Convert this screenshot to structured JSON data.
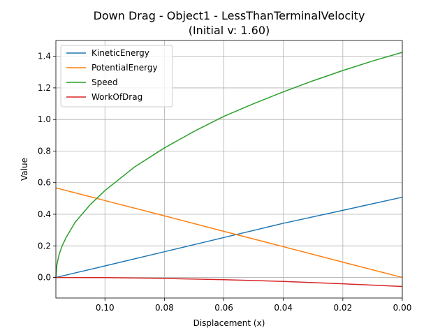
{
  "chart_data": {
    "type": "line",
    "title": "Down Drag - Object1 - LessThanTerminalVelocity",
    "subtitle": "(Initial v: 1.60)",
    "xlabel": "Displacement (x)",
    "ylabel": "Value",
    "xlim": [
      0.1165,
      0.0
    ],
    "ylim": [
      -0.13,
      1.5
    ],
    "x_inverted": true,
    "grid": true,
    "legend_position": "upper left",
    "xticks": [
      0.1,
      0.08,
      0.06,
      0.04,
      0.02,
      0.0
    ],
    "xtick_labels": [
      "0.10",
      "0.08",
      "0.06",
      "0.04",
      "0.02",
      "0.00"
    ],
    "yticks": [
      0.0,
      0.2,
      0.4,
      0.6,
      0.8,
      1.0,
      1.2,
      1.4
    ],
    "ytick_labels": [
      "0.0",
      "0.2",
      "0.4",
      "0.6",
      "0.8",
      "1.0",
      "1.2",
      "1.4"
    ],
    "series": [
      {
        "name": "KineticEnergy",
        "color": "#1f77b4",
        "x": [
          0.1165,
          0.1,
          0.08,
          0.06,
          0.04,
          0.02,
          0.0
        ],
        "y": [
          0.0,
          0.073,
          0.163,
          0.253,
          0.343,
          0.425,
          0.508
        ]
      },
      {
        "name": "PotentialEnergy",
        "color": "#ff7f0e",
        "x": [
          0.1165,
          0.1,
          0.08,
          0.06,
          0.04,
          0.02,
          0.0
        ],
        "y": [
          0.567,
          0.487,
          0.39,
          0.292,
          0.195,
          0.097,
          0.0
        ]
      },
      {
        "name": "Speed",
        "color": "#2ca02c",
        "x": [
          0.1165,
          0.1162,
          0.1155,
          0.1145,
          0.113,
          0.11,
          0.105,
          0.1,
          0.09,
          0.08,
          0.07,
          0.06,
          0.05,
          0.04,
          0.03,
          0.02,
          0.01,
          0.0
        ],
        "y": [
          0.0,
          0.075,
          0.14,
          0.195,
          0.255,
          0.35,
          0.46,
          0.55,
          0.7,
          0.82,
          0.925,
          1.02,
          1.1,
          1.175,
          1.245,
          1.31,
          1.37,
          1.425
        ]
      },
      {
        "name": "WorkOfDrag",
        "color": "#d62728",
        "x": [
          0.1165,
          0.1,
          0.08,
          0.06,
          0.04,
          0.02,
          0.0
        ],
        "y": [
          0.0,
          -0.001,
          -0.006,
          -0.014,
          -0.025,
          -0.04,
          -0.057
        ]
      }
    ]
  }
}
